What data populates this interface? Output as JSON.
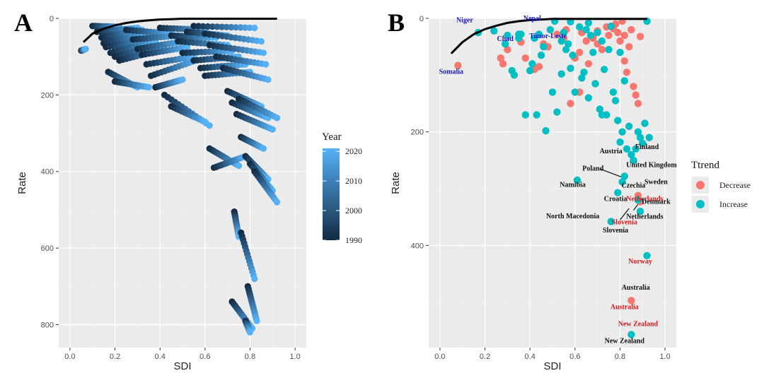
{
  "colors": {
    "panel_bg": "#ebebeb",
    "grid_major": "#ffffff",
    "grid_minor": "#f4f4f4",
    "frontier": "#000000",
    "decrease": "#f8766d",
    "increase": "#00bfc4",
    "year_low": "#132b43",
    "year_high": "#56b1f7",
    "label_black": "#111111",
    "label_red": "#d7191c",
    "label_blue": "#1a18c8"
  },
  "chart_data": [
    {
      "panel": "A",
      "type": "scatter",
      "xlabel": "SDI",
      "ylabel": "Rate",
      "xlim": [
        -0.05,
        1.05
      ],
      "ylim": [
        0,
        860
      ],
      "y_reversed": true,
      "xticks": [
        0.0,
        0.2,
        0.4,
        0.6,
        0.8,
        1.0
      ],
      "xtick_labels": [
        "0.0",
        "0.2",
        "0.4",
        "0.6",
        "0.8",
        "1.0"
      ],
      "yticks": [
        0,
        200,
        400,
        600,
        800
      ],
      "ytick_labels": [
        "0",
        "200",
        "400",
        "600",
        "800"
      ],
      "grid": true,
      "legend": {
        "title": "Year",
        "placement": "right",
        "type": "colorbar",
        "range": [
          1990,
          2021
        ],
        "ticks": [
          2020,
          2010,
          2000,
          1990
        ],
        "tick_labels": [
          "2020",
          "2010",
          "2000",
          "1990"
        ]
      },
      "frontier": {
        "x": [
          0.06,
          0.1,
          0.15,
          0.2,
          0.25,
          0.3,
          0.35,
          0.4,
          0.45,
          0.5,
          0.55,
          0.6,
          0.7,
          0.8,
          0.92
        ],
        "y": [
          62,
          40,
          27,
          18,
          12,
          8,
          5,
          3,
          2,
          1,
          1,
          1,
          1,
          1,
          1
        ]
      },
      "trajectories": [
        {
          "x0": 0.05,
          "x1": 0.07,
          "y0": 84,
          "y1": 80
        },
        {
          "x0": 0.1,
          "x1": 0.22,
          "y0": 20,
          "y1": 22
        },
        {
          "x0": 0.12,
          "x1": 0.3,
          "y0": 35,
          "y1": 25
        },
        {
          "x0": 0.14,
          "x1": 0.32,
          "y0": 50,
          "y1": 30
        },
        {
          "x0": 0.15,
          "x1": 0.34,
          "y0": 65,
          "y1": 40
        },
        {
          "x0": 0.16,
          "x1": 0.36,
          "y0": 75,
          "y1": 55
        },
        {
          "x0": 0.18,
          "x1": 0.38,
          "y0": 90,
          "y1": 60
        },
        {
          "x0": 0.2,
          "x1": 0.4,
          "y0": 100,
          "y1": 70
        },
        {
          "x0": 0.22,
          "x1": 0.42,
          "y0": 110,
          "y1": 80
        },
        {
          "x0": 0.17,
          "x1": 0.3,
          "y0": 140,
          "y1": 180
        },
        {
          "x0": 0.2,
          "x1": 0.35,
          "y0": 165,
          "y1": 180
        },
        {
          "x0": 0.25,
          "x1": 0.45,
          "y0": 30,
          "y1": 40
        },
        {
          "x0": 0.28,
          "x1": 0.48,
          "y0": 55,
          "y1": 45
        },
        {
          "x0": 0.3,
          "x1": 0.5,
          "y0": 80,
          "y1": 60
        },
        {
          "x0": 0.32,
          "x1": 0.52,
          "y0": 95,
          "y1": 75
        },
        {
          "x0": 0.34,
          "x1": 0.55,
          "y0": 120,
          "y1": 100
        },
        {
          "x0": 0.36,
          "x1": 0.56,
          "y0": 150,
          "y1": 110
        },
        {
          "x0": 0.38,
          "x1": 0.5,
          "y0": 180,
          "y1": 160
        },
        {
          "x0": 0.42,
          "x1": 0.62,
          "y0": 200,
          "y1": 280
        },
        {
          "x0": 0.45,
          "x1": 0.6,
          "y0": 230,
          "y1": 270
        },
        {
          "x0": 0.4,
          "x1": 0.6,
          "y0": 25,
          "y1": 30
        },
        {
          "x0": 0.45,
          "x1": 0.65,
          "y0": 45,
          "y1": 50
        },
        {
          "x0": 0.48,
          "x1": 0.7,
          "y0": 60,
          "y1": 70
        },
        {
          "x0": 0.5,
          "x1": 0.72,
          "y0": 90,
          "y1": 85
        },
        {
          "x0": 0.55,
          "x1": 0.75,
          "y0": 110,
          "y1": 100
        },
        {
          "x0": 0.58,
          "x1": 0.78,
          "y0": 130,
          "y1": 120
        },
        {
          "x0": 0.6,
          "x1": 0.8,
          "y0": 150,
          "y1": 140
        },
        {
          "x0": 0.52,
          "x1": 0.7,
          "y0": 35,
          "y1": 45
        },
        {
          "x0": 0.55,
          "x1": 0.82,
          "y0": 20,
          "y1": 25
        },
        {
          "x0": 0.6,
          "x1": 0.85,
          "y0": 40,
          "y1": 60
        },
        {
          "x0": 0.62,
          "x1": 0.86,
          "y0": 70,
          "y1": 90
        },
        {
          "x0": 0.65,
          "x1": 0.87,
          "y0": 100,
          "y1": 120
        },
        {
          "x0": 0.68,
          "x1": 0.88,
          "y0": 130,
          "y1": 160
        },
        {
          "x0": 0.62,
          "x1": 0.75,
          "y0": 340,
          "y1": 385
        },
        {
          "x0": 0.64,
          "x1": 0.78,
          "y0": 390,
          "y1": 360
        },
        {
          "x0": 0.7,
          "x1": 0.85,
          "y0": 190,
          "y1": 230
        },
        {
          "x0": 0.72,
          "x1": 0.88,
          "y0": 220,
          "y1": 260
        },
        {
          "x0": 0.74,
          "x1": 0.9,
          "y0": 250,
          "y1": 290
        },
        {
          "x0": 0.75,
          "x1": 0.92,
          "y0": 210,
          "y1": 260
        },
        {
          "x0": 0.76,
          "x1": 0.86,
          "y0": 310,
          "y1": 340
        },
        {
          "x0": 0.78,
          "x1": 0.88,
          "y0": 360,
          "y1": 420
        },
        {
          "x0": 0.8,
          "x1": 0.9,
          "y0": 380,
          "y1": 450
        },
        {
          "x0": 0.82,
          "x1": 0.92,
          "y0": 400,
          "y1": 480
        },
        {
          "x0": 0.73,
          "x1": 0.75,
          "y0": 505,
          "y1": 570
        },
        {
          "x0": 0.76,
          "x1": 0.82,
          "y0": 560,
          "y1": 680
        },
        {
          "x0": 0.79,
          "x1": 0.83,
          "y0": 700,
          "y1": 790
        },
        {
          "x0": 0.72,
          "x1": 0.81,
          "y0": 740,
          "y1": 810
        },
        {
          "x0": 0.78,
          "x1": 0.8,
          "y0": 790,
          "y1": 820
        }
      ]
    },
    {
      "panel": "B",
      "type": "scatter",
      "xlabel": "SDI",
      "ylabel": "Rate",
      "xlim": [
        -0.05,
        1.05
      ],
      "ylim": [
        0,
        580
      ],
      "y_reversed": true,
      "xticks": [
        0.0,
        0.2,
        0.4,
        0.6,
        0.8,
        1.0
      ],
      "xtick_labels": [
        "0.0",
        "0.2",
        "0.4",
        "0.6",
        "0.8",
        "1.0"
      ],
      "yticks": [
        0,
        200,
        400
      ],
      "ytick_labels": [
        "0",
        "200",
        "400"
      ],
      "grid": true,
      "frontier": {
        "x": [
          0.05,
          0.1,
          0.15,
          0.2,
          0.25,
          0.3,
          0.35,
          0.4,
          0.45,
          0.5,
          0.55,
          0.6,
          0.7,
          0.8,
          0.92
        ],
        "y": [
          62,
          42,
          28,
          19,
          13,
          8,
          5,
          3,
          2,
          1,
          1,
          1,
          1,
          1,
          1
        ]
      },
      "legend": {
        "title": "Ttrend",
        "placement": "right",
        "entries": [
          {
            "label": "Decrease",
            "color": "#f8766d"
          },
          {
            "label": "Increase",
            "color": "#00bfc4"
          }
        ]
      },
      "decrease_points": [
        [
          0.08,
          83
        ],
        [
          0.27,
          70
        ],
        [
          0.28,
          80
        ],
        [
          0.3,
          55
        ],
        [
          0.36,
          42
        ],
        [
          0.38,
          70
        ],
        [
          0.42,
          90
        ],
        [
          0.44,
          85
        ],
        [
          0.46,
          45
        ],
        [
          0.48,
          50
        ],
        [
          0.52,
          28
        ],
        [
          0.55,
          35
        ],
        [
          0.56,
          20
        ],
        [
          0.58,
          150
        ],
        [
          0.6,
          70
        ],
        [
          0.62,
          60
        ],
        [
          0.63,
          25
        ],
        [
          0.65,
          40
        ],
        [
          0.66,
          80
        ],
        [
          0.68,
          35
        ],
        [
          0.7,
          22
        ],
        [
          0.72,
          55
        ],
        [
          0.75,
          30
        ],
        [
          0.77,
          18
        ],
        [
          0.78,
          10
        ],
        [
          0.79,
          25
        ],
        [
          0.8,
          40
        ],
        [
          0.82,
          30
        ],
        [
          0.82,
          75
        ],
        [
          0.83,
          95
        ],
        [
          0.84,
          50
        ],
        [
          0.85,
          20
        ],
        [
          0.86,
          120
        ],
        [
          0.87,
          135
        ],
        [
          0.88,
          150
        ],
        [
          0.89,
          32
        ],
        [
          0.7,
          45
        ],
        [
          0.74,
          15
        ],
        [
          0.81,
          5
        ],
        [
          0.88,
          312
        ],
        [
          0.89,
          323
        ],
        [
          0.85,
          497
        ],
        [
          0.62,
          130
        ]
      ],
      "increase_points": [
        [
          0.17,
          25
        ],
        [
          0.24,
          22
        ],
        [
          0.29,
          45
        ],
        [
          0.3,
          30
        ],
        [
          0.32,
          92
        ],
        [
          0.33,
          100
        ],
        [
          0.35,
          35
        ],
        [
          0.36,
          28
        ],
        [
          0.38,
          170
        ],
        [
          0.4,
          92
        ],
        [
          0.41,
          80
        ],
        [
          0.42,
          35
        ],
        [
          0.43,
          170
        ],
        [
          0.45,
          65
        ],
        [
          0.46,
          50
        ],
        [
          0.47,
          198
        ],
        [
          0.49,
          20
        ],
        [
          0.5,
          130
        ],
        [
          0.51,
          5
        ],
        [
          0.52,
          165
        ],
        [
          0.54,
          40
        ],
        [
          0.55,
          25
        ],
        [
          0.56,
          55
        ],
        [
          0.57,
          45
        ],
        [
          0.58,
          6
        ],
        [
          0.59,
          65
        ],
        [
          0.6,
          130
        ],
        [
          0.61,
          285
        ],
        [
          0.62,
          15
        ],
        [
          0.63,
          105
        ],
        [
          0.64,
          95
        ],
        [
          0.65,
          20
        ],
        [
          0.66,
          140
        ],
        [
          0.67,
          30
        ],
        [
          0.68,
          60
        ],
        [
          0.69,
          115
        ],
        [
          0.7,
          25
        ],
        [
          0.71,
          160
        ],
        [
          0.72,
          40
        ],
        [
          0.73,
          90
        ],
        [
          0.74,
          170
        ],
        [
          0.75,
          55
        ],
        [
          0.76,
          14
        ],
        [
          0.77,
          130
        ],
        [
          0.78,
          145
        ],
        [
          0.79,
          180
        ],
        [
          0.8,
          60
        ],
        [
          0.8,
          218
        ],
        [
          0.81,
          200
        ],
        [
          0.82,
          110
        ],
        [
          0.83,
          230
        ],
        [
          0.84,
          190
        ],
        [
          0.85,
          240
        ],
        [
          0.86,
          250
        ],
        [
          0.87,
          230
        ],
        [
          0.88,
          200
        ],
        [
          0.89,
          210
        ],
        [
          0.9,
          220
        ],
        [
          0.91,
          185
        ],
        [
          0.92,
          5
        ],
        [
          0.93,
          210
        ],
        [
          0.76,
          358
        ],
        [
          0.79,
          307
        ],
        [
          0.81,
          288
        ],
        [
          0.82,
          278
        ],
        [
          0.88,
          320
        ],
        [
          0.89,
          340
        ],
        [
          0.92,
          418
        ],
        [
          0.85,
          557
        ],
        [
          0.54,
          98
        ],
        [
          0.44,
          28
        ],
        [
          0.35,
          28
        ],
        [
          0.66,
          8
        ],
        [
          0.72,
          170
        ],
        [
          0.58,
          88
        ]
      ],
      "annotations": [
        {
          "text": "Niger",
          "x": 0.11,
          "y": 7,
          "color": "label_blue"
        },
        {
          "text": "Nepal",
          "x": 0.41,
          "y": 4,
          "color": "label_blue"
        },
        {
          "text": "Chad",
          "x": 0.29,
          "y": 40,
          "color": "label_blue"
        },
        {
          "text": "Timor-Leste",
          "x": 0.48,
          "y": 35,
          "color": "label_blue"
        },
        {
          "text": "Somalia",
          "x": 0.05,
          "y": 98,
          "color": "label_blue"
        },
        {
          "text": "Finland",
          "x": 0.92,
          "y": 230,
          "color": "label_black"
        },
        {
          "text": "Austria",
          "x": 0.76,
          "y": 238,
          "color": "label_black"
        },
        {
          "text": "United Kingdom",
          "x": 0.94,
          "y": 262,
          "color": "label_black"
        },
        {
          "text": "Poland",
          "x": 0.68,
          "y": 268,
          "color": "label_black"
        },
        {
          "text": "Sweden",
          "x": 0.96,
          "y": 292,
          "color": "label_black"
        },
        {
          "text": "Namibia",
          "x": 0.59,
          "y": 297,
          "color": "label_black"
        },
        {
          "text": "Czechia",
          "x": 0.86,
          "y": 298,
          "color": "label_black"
        },
        {
          "text": "Croatia",
          "x": 0.78,
          "y": 322,
          "color": "label_black"
        },
        {
          "text": "Netherlands",
          "x": 0.91,
          "y": 322,
          "color": "label_red"
        },
        {
          "text": "Denmark",
          "x": 0.96,
          "y": 327,
          "color": "label_black"
        },
        {
          "text": "North Macedonia",
          "x": 0.59,
          "y": 352,
          "color": "label_black"
        },
        {
          "text": "Netherlands",
          "x": 0.91,
          "y": 353,
          "color": "label_black"
        },
        {
          "text": "Slovenia",
          "x": 0.82,
          "y": 363,
          "color": "label_red"
        },
        {
          "text": "Slovenia",
          "x": 0.78,
          "y": 377,
          "color": "label_black"
        },
        {
          "text": "Norway",
          "x": 0.89,
          "y": 432,
          "color": "label_red"
        },
        {
          "text": "Australia",
          "x": 0.87,
          "y": 478,
          "color": "label_black"
        },
        {
          "text": "Australia",
          "x": 0.82,
          "y": 512,
          "color": "label_red"
        },
        {
          "text": "New Zealand",
          "x": 0.88,
          "y": 542,
          "color": "label_red"
        },
        {
          "text": "New Zealand",
          "x": 0.82,
          "y": 572,
          "color": "label_black"
        }
      ]
    }
  ]
}
